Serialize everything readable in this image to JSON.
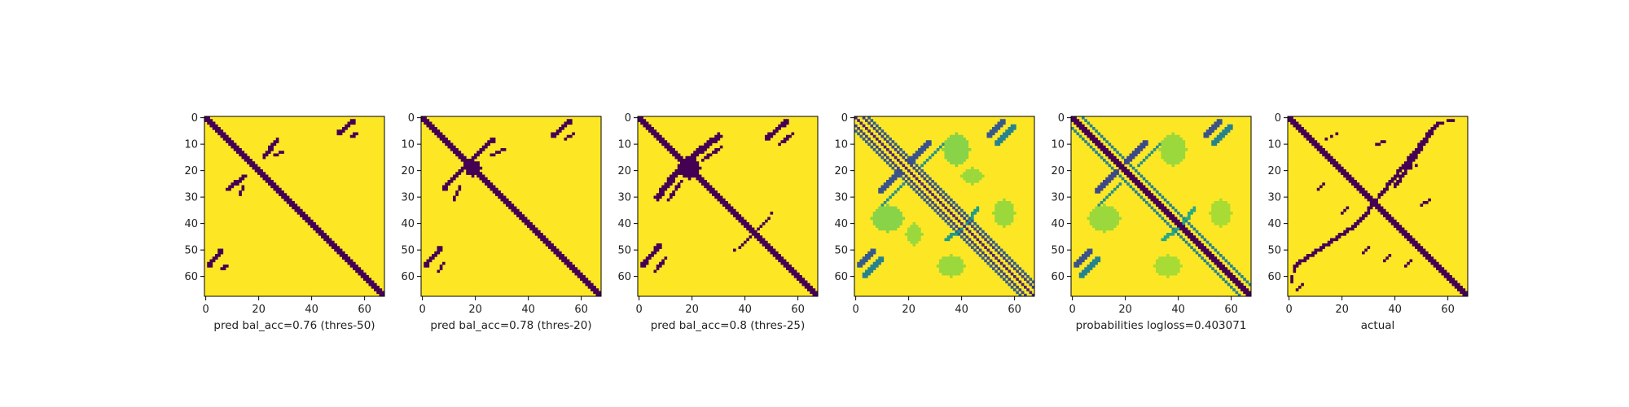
{
  "colors": {
    "background": "#ffffff",
    "contact": "#440154",
    "no_contact": "#fde725",
    "axis": "#000000"
  },
  "chart_data": [
    {
      "type": "heatmap",
      "xlabel": "pred bal_acc=0.76 (thres-50)",
      "colormap": "viridis-binary",
      "xlim": [
        0,
        67
      ],
      "ylim": [
        67,
        0
      ],
      "xticks": [
        "0",
        "20",
        "40",
        "60"
      ],
      "yticks": [
        "0",
        "10",
        "20",
        "30",
        "40",
        "50",
        "60"
      ],
      "features": [
        {
          "kind": "diag",
          "offset": 0,
          "width": 3.0,
          "value": 0
        },
        {
          "kind": "band",
          "x": [
            50,
            56
          ],
          "y": [
            6,
            1
          ],
          "width": 1.6,
          "value": 0
        },
        {
          "kind": "band",
          "x": [
            55,
            57
          ],
          "y": [
            7,
            6
          ],
          "width": 0.9,
          "value": 0
        },
        {
          "kind": "band",
          "x": [
            1,
            6
          ],
          "y": [
            56,
            50
          ],
          "width": 1.6,
          "value": 0
        },
        {
          "kind": "band",
          "x": [
            6,
            8
          ],
          "y": [
            57,
            56
          ],
          "width": 0.9,
          "value": 0
        },
        {
          "kind": "band",
          "x": [
            22,
            27
          ],
          "y": [
            15,
            8
          ],
          "width": 1.5,
          "value": 0
        },
        {
          "kind": "band",
          "x": [
            26,
            29
          ],
          "y": [
            14,
            13
          ],
          "width": 0.9,
          "value": 0
        },
        {
          "kind": "band",
          "x": [
            8,
            15
          ],
          "y": [
            27,
            22
          ],
          "width": 1.5,
          "value": 0
        },
        {
          "kind": "band",
          "x": [
            13,
            14
          ],
          "y": [
            29,
            26
          ],
          "width": 0.9,
          "value": 0
        }
      ]
    },
    {
      "type": "heatmap",
      "xlabel": "pred bal_acc=0.78 (thres-20)",
      "colormap": "viridis-binary",
      "xlim": [
        0,
        67
      ],
      "ylim": [
        67,
        0
      ],
      "xticks": [
        "0",
        "20",
        "40",
        "60"
      ],
      "yticks": [
        "0",
        "10",
        "20",
        "30",
        "40",
        "50",
        "60"
      ],
      "features": [
        {
          "kind": "diag",
          "offset": 0,
          "width": 3.2,
          "value": 0
        },
        {
          "kind": "band",
          "x": [
            49,
            56
          ],
          "y": [
            7,
            1
          ],
          "width": 1.7,
          "value": 0
        },
        {
          "kind": "band",
          "x": [
            54,
            57
          ],
          "y": [
            8,
            6
          ],
          "width": 0.9,
          "value": 0
        },
        {
          "kind": "band",
          "x": [
            1,
            7
          ],
          "y": [
            56,
            49
          ],
          "width": 1.7,
          "value": 0
        },
        {
          "kind": "band",
          "x": [
            6,
            8
          ],
          "y": [
            58,
            55
          ],
          "width": 0.9,
          "value": 0
        },
        {
          "kind": "band",
          "x": [
            17,
            27
          ],
          "y": [
            17,
            8
          ],
          "width": 1.6,
          "value": 0
        },
        {
          "kind": "band",
          "x": [
            26,
            31
          ],
          "y": [
            14,
            12
          ],
          "width": 1.0,
          "value": 0
        },
        {
          "kind": "band",
          "x": [
            8,
            17
          ],
          "y": [
            27,
            17
          ],
          "width": 1.6,
          "value": 0
        },
        {
          "kind": "band",
          "x": [
            12,
            14
          ],
          "y": [
            31,
            26
          ],
          "width": 1.0,
          "value": 0
        },
        {
          "kind": "blob",
          "cx": 19,
          "cy": 19,
          "rx": 3.0,
          "ry": 3.0,
          "value": 0
        }
      ]
    },
    {
      "type": "heatmap",
      "xlabel": "pred bal_acc=0.8 (thres-25)",
      "colormap": "viridis-binary",
      "xlim": [
        0,
        67
      ],
      "ylim": [
        67,
        0
      ],
      "xticks": [
        "0",
        "20",
        "40",
        "60"
      ],
      "yticks": [
        "0",
        "10",
        "20",
        "30",
        "40",
        "50",
        "60"
      ],
      "features": [
        {
          "kind": "diag",
          "offset": 0,
          "width": 3.4,
          "value": 0
        },
        {
          "kind": "band",
          "x": [
            48,
            56
          ],
          "y": [
            8,
            1
          ],
          "width": 1.8,
          "value": 0
        },
        {
          "kind": "band",
          "x": [
            53,
            58
          ],
          "y": [
            10,
            6
          ],
          "width": 1.0,
          "value": 0
        },
        {
          "kind": "band",
          "x": [
            1,
            8
          ],
          "y": [
            56,
            48
          ],
          "width": 1.8,
          "value": 0
        },
        {
          "kind": "band",
          "x": [
            6,
            10
          ],
          "y": [
            58,
            53
          ],
          "width": 1.0,
          "value": 0
        },
        {
          "kind": "band",
          "x": [
            17,
            30
          ],
          "y": [
            17,
            7
          ],
          "width": 2.2,
          "value": 0
        },
        {
          "kind": "band",
          "x": [
            7,
            17
          ],
          "y": [
            30,
            17
          ],
          "width": 2.2,
          "value": 0
        },
        {
          "kind": "band",
          "x": [
            24,
            31
          ],
          "y": [
            16,
            11
          ],
          "width": 1.1,
          "value": 0
        },
        {
          "kind": "band",
          "x": [
            11,
            16
          ],
          "y": [
            31,
            24
          ],
          "width": 1.1,
          "value": 0
        },
        {
          "kind": "blob",
          "cx": 19,
          "cy": 19,
          "rx": 4.0,
          "ry": 4.0,
          "value": 0
        },
        {
          "kind": "band",
          "x": [
            38,
            49
          ],
          "y": [
            49,
            38
          ],
          "width": 0.8,
          "value": 0
        },
        {
          "kind": "band",
          "x": [
            49,
            50
          ],
          "y": [
            38,
            36
          ],
          "width": 0.7,
          "value": 0
        },
        {
          "kind": "band",
          "x": [
            38,
            36
          ],
          "y": [
            49,
            50
          ],
          "width": 0.7,
          "value": 0
        }
      ]
    },
    {
      "type": "heatmap",
      "xlabel": "",
      "colormap": "viridis",
      "xlim": [
        0,
        67
      ],
      "ylim": [
        67,
        0
      ],
      "xticks": [
        "0",
        "20",
        "40",
        "60"
      ],
      "yticks": [
        "0",
        "10",
        "20",
        "30",
        "40",
        "50",
        "60"
      ],
      "features": [
        {
          "kind": "diag",
          "offset": 0,
          "width": 0.9,
          "value": 0.1
        },
        {
          "kind": "diag",
          "offset": 3,
          "width": 0.8,
          "value": 0.2
        },
        {
          "kind": "diag",
          "offset": -3,
          "width": 0.8,
          "value": 0.2
        },
        {
          "kind": "diag",
          "offset": 5,
          "width": 0.8,
          "value": 0.3
        },
        {
          "kind": "diag",
          "offset": -5,
          "width": 0.8,
          "value": 0.3
        },
        {
          "kind": "band",
          "x": [
            50,
            56
          ],
          "y": [
            7,
            1
          ],
          "width": 1.8,
          "value": 0.28
        },
        {
          "kind": "band",
          "x": [
            53,
            60
          ],
          "y": [
            10,
            3
          ],
          "width": 1.6,
          "value": 0.45
        },
        {
          "kind": "band",
          "x": [
            1,
            7
          ],
          "y": [
            56,
            50
          ],
          "width": 1.8,
          "value": 0.28
        },
        {
          "kind": "band",
          "x": [
            3,
            10
          ],
          "y": [
            60,
            53
          ],
          "width": 1.6,
          "value": 0.45
        },
        {
          "kind": "band",
          "x": [
            20,
            28
          ],
          "y": [
            17,
            9
          ],
          "width": 1.8,
          "value": 0.25
        },
        {
          "kind": "band",
          "x": [
            9,
            17
          ],
          "y": [
            28,
            20
          ],
          "width": 1.8,
          "value": 0.25
        },
        {
          "kind": "band",
          "x": [
            25,
            33
          ],
          "y": [
            18,
            10
          ],
          "width": 1.4,
          "value": 0.5
        },
        {
          "kind": "band",
          "x": [
            10,
            18
          ],
          "y": [
            33,
            25
          ],
          "width": 1.4,
          "value": 0.5
        },
        {
          "kind": "band",
          "x": [
            34,
            40
          ],
          "y": [
            46,
            42
          ],
          "width": 1.3,
          "value": 0.55
        },
        {
          "kind": "band",
          "x": [
            46,
            42
          ],
          "y": [
            34,
            40
          ],
          "width": 1.3,
          "value": 0.55
        },
        {
          "kind": "blob",
          "cx": 12,
          "cy": 38,
          "rx": 6,
          "ry": 5,
          "value": 0.82
        },
        {
          "kind": "blob",
          "cx": 38,
          "cy": 12,
          "rx": 5,
          "ry": 6,
          "value": 0.82
        },
        {
          "kind": "blob",
          "cx": 36,
          "cy": 56,
          "rx": 5,
          "ry": 4,
          "value": 0.85
        },
        {
          "kind": "blob",
          "cx": 56,
          "cy": 36,
          "rx": 4,
          "ry": 5,
          "value": 0.85
        },
        {
          "kind": "blob",
          "cx": 44,
          "cy": 22,
          "rx": 4,
          "ry": 3,
          "value": 0.85
        },
        {
          "kind": "blob",
          "cx": 22,
          "cy": 44,
          "rx": 3,
          "ry": 4,
          "value": 0.85
        }
      ]
    },
    {
      "type": "heatmap",
      "xlabel": "probabilities logloss=0.403071",
      "colormap": "viridis",
      "xlim": [
        0,
        67
      ],
      "ylim": [
        67,
        0
      ],
      "xticks": [
        "0",
        "20",
        "40",
        "60"
      ],
      "yticks": [
        "0",
        "10",
        "20",
        "30",
        "40",
        "50",
        "60"
      ],
      "features": [
        {
          "kind": "diag",
          "offset": 0,
          "width": 2.8,
          "value": 0.0
        },
        {
          "kind": "diag",
          "offset": 4,
          "width": 1.0,
          "value": 0.45
        },
        {
          "kind": "diag",
          "offset": -4,
          "width": 1.0,
          "value": 0.45
        },
        {
          "kind": "band",
          "x": [
            50,
            56
          ],
          "y": [
            7,
            1
          ],
          "width": 1.8,
          "value": 0.25
        },
        {
          "kind": "band",
          "x": [
            53,
            60
          ],
          "y": [
            10,
            3
          ],
          "width": 1.6,
          "value": 0.45
        },
        {
          "kind": "band",
          "x": [
            1,
            7
          ],
          "y": [
            56,
            50
          ],
          "width": 1.8,
          "value": 0.25
        },
        {
          "kind": "band",
          "x": [
            3,
            10
          ],
          "y": [
            60,
            53
          ],
          "width": 1.6,
          "value": 0.45
        },
        {
          "kind": "band",
          "x": [
            20,
            28
          ],
          "y": [
            17,
            9
          ],
          "width": 1.8,
          "value": 0.22
        },
        {
          "kind": "band",
          "x": [
            9,
            17
          ],
          "y": [
            28,
            20
          ],
          "width": 1.8,
          "value": 0.22
        },
        {
          "kind": "band",
          "x": [
            25,
            33
          ],
          "y": [
            18,
            10
          ],
          "width": 1.4,
          "value": 0.5
        },
        {
          "kind": "band",
          "x": [
            10,
            18
          ],
          "y": [
            33,
            25
          ],
          "width": 1.4,
          "value": 0.5
        },
        {
          "kind": "band",
          "x": [
            34,
            40
          ],
          "y": [
            46,
            42
          ],
          "width": 1.3,
          "value": 0.6
        },
        {
          "kind": "band",
          "x": [
            46,
            42
          ],
          "y": [
            34,
            40
          ],
          "width": 1.3,
          "value": 0.6
        },
        {
          "kind": "blob",
          "cx": 12,
          "cy": 38,
          "rx": 6,
          "ry": 5,
          "value": 0.85
        },
        {
          "kind": "blob",
          "cx": 38,
          "cy": 12,
          "rx": 5,
          "ry": 6,
          "value": 0.85
        },
        {
          "kind": "blob",
          "cx": 36,
          "cy": 56,
          "rx": 5,
          "ry": 4,
          "value": 0.87
        },
        {
          "kind": "blob",
          "cx": 56,
          "cy": 36,
          "rx": 4,
          "ry": 5,
          "value": 0.87
        }
      ]
    },
    {
      "type": "heatmap",
      "xlabel": "actual",
      "colormap": "viridis-binary",
      "xlim": [
        0,
        67
      ],
      "ylim": [
        67,
        0
      ],
      "xticks": [
        "0",
        "20",
        "40",
        "60"
      ],
      "yticks": [
        "0",
        "10",
        "20",
        "30",
        "40",
        "50",
        "60"
      ],
      "features": [
        {
          "kind": "diag",
          "offset": 0,
          "width": 2.6,
          "value": 0
        },
        {
          "kind": "band",
          "x": [
            26,
            56
          ],
          "y": [
            40,
            2
          ],
          "width": 1.4,
          "value": 0
        },
        {
          "kind": "band",
          "x": [
            2,
            26
          ],
          "y": [
            56,
            40
          ],
          "width": 1.4,
          "value": 0
        },
        {
          "kind": "band",
          "x": [
            40,
            56
          ],
          "y": [
            26,
            2
          ],
          "width": 1.2,
          "value": 0
        },
        {
          "kind": "band",
          "x": [
            56,
            62
          ],
          "y": [
            2,
            1
          ],
          "width": 0.8,
          "value": 0
        },
        {
          "kind": "band",
          "x": [
            1,
            2
          ],
          "y": [
            62,
            56
          ],
          "width": 0.8,
          "value": 0
        },
        {
          "kind": "band",
          "x": [
            14,
            18
          ],
          "y": [
            8,
            6
          ],
          "width": 0.7,
          "value": 0
        },
        {
          "kind": "band",
          "x": [
            33,
            36
          ],
          "y": [
            10,
            9
          ],
          "width": 0.7,
          "value": 0
        },
        {
          "kind": "band",
          "x": [
            44,
            48
          ],
          "y": [
            20,
            18
          ],
          "width": 0.7,
          "value": 0
        },
        {
          "kind": "band",
          "x": [
            50,
            53
          ],
          "y": [
            33,
            31
          ],
          "width": 0.7,
          "value": 0
        },
        {
          "kind": "band",
          "x": [
            11,
            13
          ],
          "y": [
            27,
            25
          ],
          "width": 0.7,
          "value": 0
        },
        {
          "kind": "band",
          "x": [
            20,
            22
          ],
          "y": [
            36,
            34
          ],
          "width": 0.7,
          "value": 0
        },
        {
          "kind": "band",
          "x": [
            28,
            30
          ],
          "y": [
            51,
            49
          ],
          "width": 0.7,
          "value": 0
        },
        {
          "kind": "band",
          "x": [
            36,
            38
          ],
          "y": [
            54,
            52
          ],
          "width": 0.7,
          "value": 0
        },
        {
          "kind": "band",
          "x": [
            44,
            46
          ],
          "y": [
            56,
            54
          ],
          "width": 0.6,
          "value": 0
        },
        {
          "kind": "band",
          "x": [
            3,
            5
          ],
          "y": [
            65,
            63
          ],
          "width": 0.6,
          "value": 0
        }
      ]
    }
  ]
}
